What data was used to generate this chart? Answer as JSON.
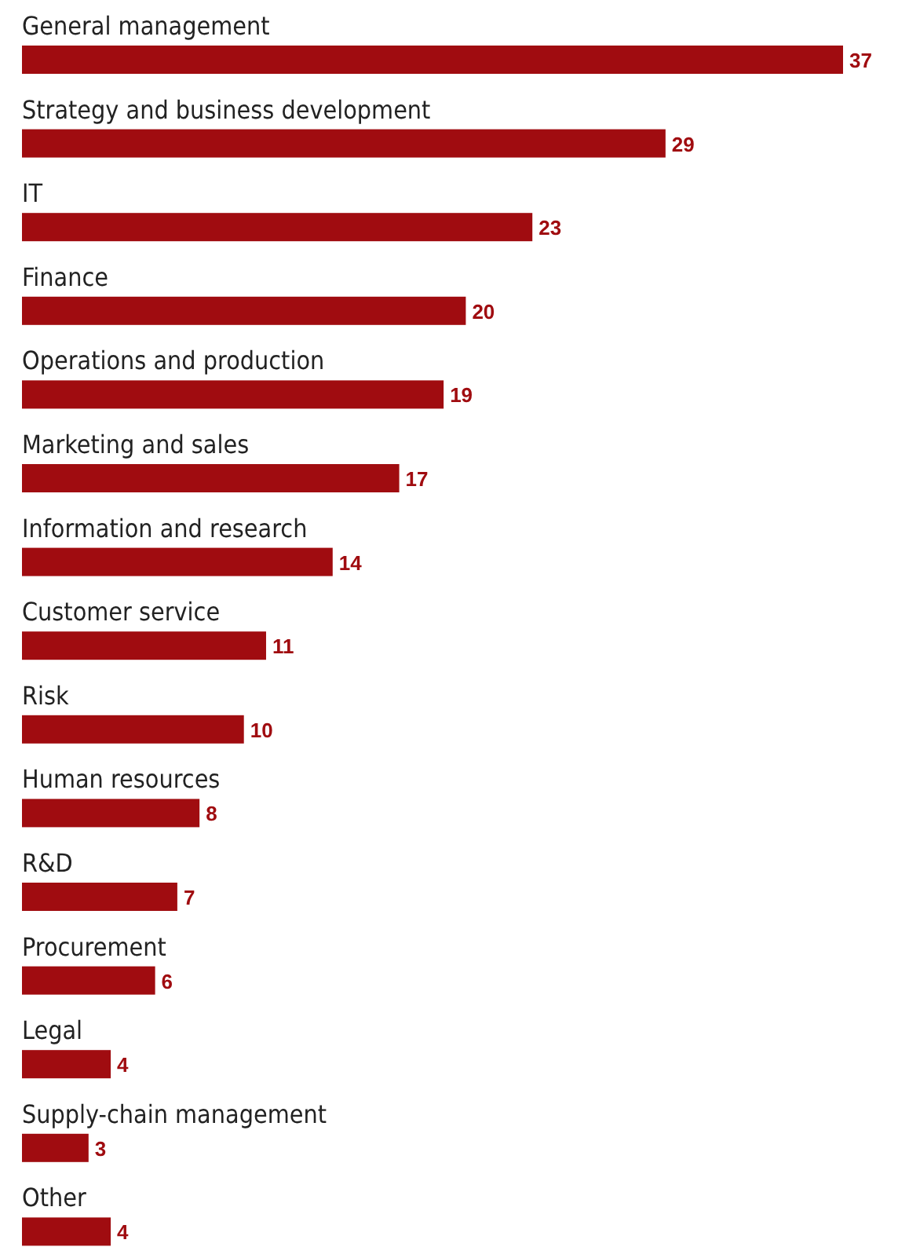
{
  "chart_data": {
    "type": "bar",
    "orientation": "horizontal",
    "color": "#a00c10",
    "data_labels": true,
    "categories": [
      "General management",
      "Strategy and business development",
      "IT",
      "Finance",
      "Operations and production",
      "Marketing and sales",
      "Information and research",
      "Customer service",
      "Risk",
      "Human resources",
      "R&D",
      "Procurement",
      "Legal",
      "Supply-chain management",
      "Other"
    ],
    "values": [
      37,
      29,
      23,
      20,
      19,
      17,
      14,
      11,
      10,
      8,
      7,
      6,
      4,
      3,
      4
    ]
  }
}
